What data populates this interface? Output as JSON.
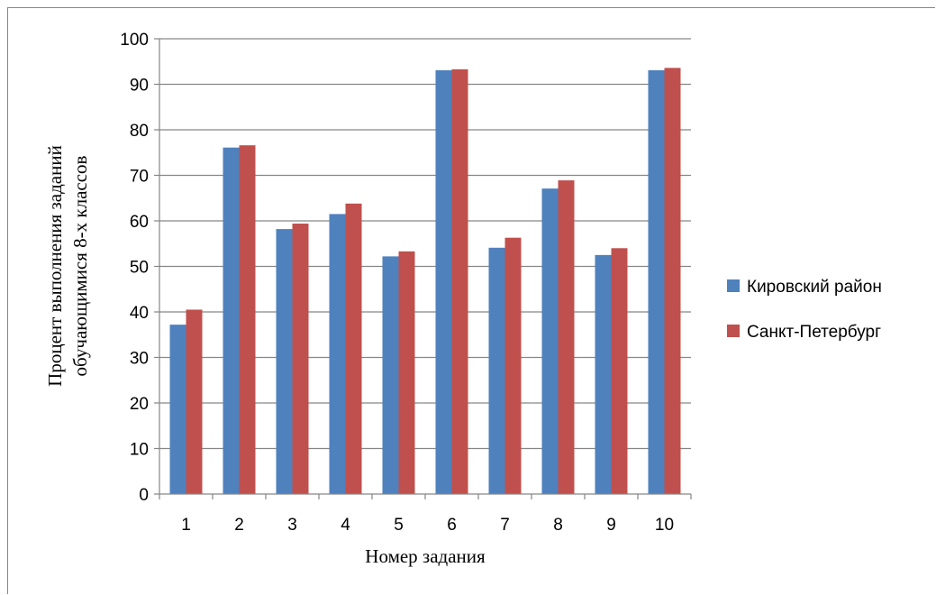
{
  "chart_data": {
    "type": "bar",
    "categories": [
      "1",
      "2",
      "3",
      "4",
      "5",
      "6",
      "7",
      "8",
      "9",
      "10"
    ],
    "series": [
      {
        "name": "Кировский район",
        "color": "#4f81bd",
        "values": [
          37.2,
          76.1,
          58.2,
          61.5,
          52.2,
          93.1,
          54.1,
          67.1,
          52.5,
          93.1
        ]
      },
      {
        "name": "Санкт-Петербург",
        "color": "#c0504d",
        "values": [
          40.5,
          76.6,
          59.4,
          63.8,
          53.3,
          93.3,
          56.3,
          68.9,
          54.0,
          93.6
        ]
      }
    ],
    "title": "",
    "xlabel": "Номер задания",
    "ylabel_lines": [
      "Процент выполнения заданий",
      "обучающимися 8-х классов"
    ],
    "ylim": [
      0,
      100
    ],
    "yticks": [
      0,
      10,
      20,
      30,
      40,
      50,
      60,
      70,
      80,
      90,
      100
    ],
    "grid": true,
    "legend_position": "right"
  }
}
